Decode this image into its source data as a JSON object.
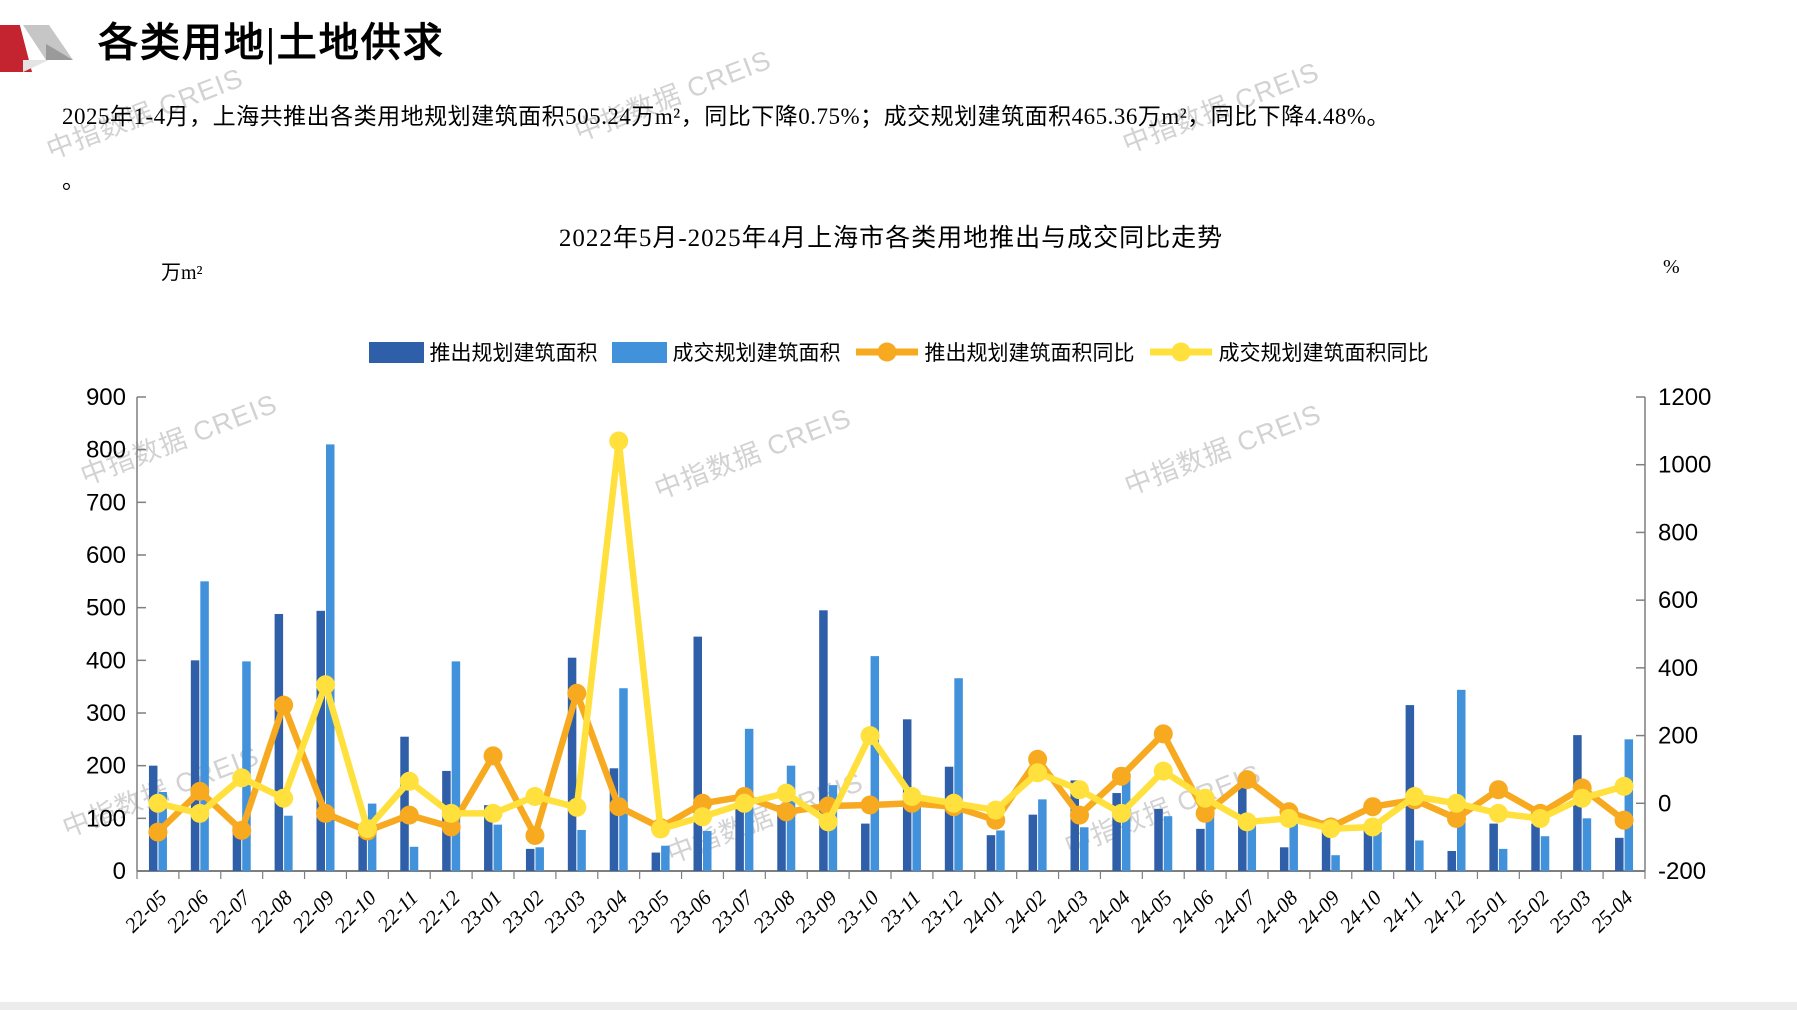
{
  "header": {
    "title": "各类用地|土地供求"
  },
  "paragraph": {
    "line1": "2025年1-4月，上海共推出各类用地规划建筑面积505.24万m²，同比下降0.75%；成交规划建筑面积465.36万m²，同比下降4.48%。",
    "line2": "。"
  },
  "watermark": {
    "text": "中指数据 CREIS"
  },
  "chart_data": {
    "type": "bar",
    "subtype": "grouped bars + two yoy lines on secondary axis",
    "title": "2022年5月-2025年4月上海市各类用地推出与成交同比走势",
    "left_axis": {
      "unit": "万m²",
      "min": 0,
      "max": 900,
      "step": 100
    },
    "right_axis": {
      "unit": "%",
      "min": -200,
      "max": 1200,
      "step": 200
    },
    "grid": "off",
    "legend_position": "top",
    "categories": [
      "22-05",
      "22-06",
      "22-07",
      "22-08",
      "22-09",
      "22-10",
      "22-11",
      "22-12",
      "23-01",
      "23-02",
      "23-03",
      "23-04",
      "23-05",
      "23-06",
      "23-07",
      "23-08",
      "23-09",
      "23-10",
      "23-11",
      "23-12",
      "24-01",
      "24-02",
      "24-03",
      "24-04",
      "24-05",
      "24-06",
      "24-07",
      "24-08",
      "24-09",
      "24-10",
      "24-11",
      "24-12",
      "25-01",
      "25-02",
      "25-03",
      "25-04"
    ],
    "series": [
      {
        "name": "推出规划建筑面积",
        "type": "bar",
        "axis": "left",
        "color": "#2e5fa8",
        "values": [
          200,
          400,
          85,
          488,
          494,
          66,
          255,
          190,
          125,
          42,
          405,
          195,
          35,
          445,
          120,
          125,
          495,
          90,
          288,
          198,
          68,
          107,
          172,
          148,
          118,
          80,
          158,
          45,
          96,
          88,
          315,
          38,
          90,
          90,
          258,
          63
        ]
      },
      {
        "name": "成交规划建筑面积",
        "type": "bar",
        "axis": "left",
        "color": "#4191db",
        "values": [
          150,
          550,
          398,
          105,
          810,
          128,
          46,
          398,
          88,
          45,
          78,
          347,
          48,
          76,
          270,
          200,
          163,
          408,
          140,
          366,
          77,
          136,
          83,
          178,
          104,
          134,
          92,
          100,
          30,
          74,
          58,
          344,
          42,
          66,
          100,
          250
        ]
      },
      {
        "name": "推出规划建筑面积同比",
        "type": "line",
        "axis": "right",
        "color": "#f7a920",
        "values": [
          -85,
          35,
          -80,
          290,
          -30,
          -82,
          -35,
          -70,
          140,
          -95,
          325,
          -10,
          -72,
          0,
          20,
          -25,
          -8,
          -5,
          0,
          -10,
          -50,
          130,
          -35,
          80,
          205,
          -30,
          70,
          -25,
          -70,
          -10,
          10,
          -45,
          40,
          -30,
          45,
          -50
        ]
      },
      {
        "name": "成交规划建筑面积同比",
        "type": "line",
        "axis": "right",
        "color": "#ffe03c",
        "values": [
          0,
          -30,
          75,
          15,
          350,
          -75,
          65,
          -30,
          -30,
          20,
          -12,
          1070,
          -76,
          -40,
          0,
          30,
          -55,
          200,
          20,
          0,
          -20,
          90,
          40,
          -30,
          95,
          15,
          -55,
          -45,
          -75,
          -70,
          20,
          0,
          -30,
          -45,
          15,
          50
        ]
      }
    ]
  }
}
